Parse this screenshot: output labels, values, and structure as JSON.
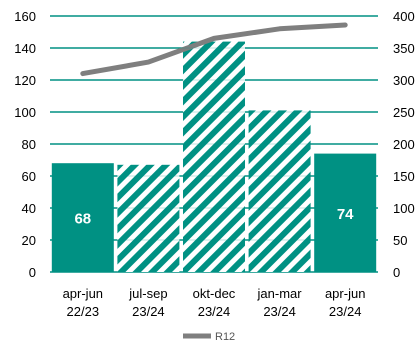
{
  "chart_data": {
    "type": "bar",
    "categories": [
      [
        "apr-jun",
        "22/23"
      ],
      [
        "jul-sep",
        "23/24"
      ],
      [
        "okt-dec",
        "23/24"
      ],
      [
        "jan-mar",
        "23/24"
      ],
      [
        "apr-jun",
        "23/24"
      ]
    ],
    "series": [
      {
        "kind": "bar",
        "axis": "left",
        "values": [
          68,
          67,
          144,
          101,
          74
        ],
        "patterns": [
          "solid",
          "hatched",
          "hatched",
          "hatched",
          "solid"
        ],
        "data_labels": [
          "68",
          null,
          null,
          null,
          "74"
        ]
      },
      {
        "name": "R12",
        "kind": "line",
        "axis": "right",
        "values": [
          310,
          328,
          365,
          380,
          386
        ]
      }
    ],
    "left_axis": {
      "min": 0,
      "max": 160,
      "ticks": [
        0,
        20,
        40,
        60,
        80,
        100,
        120,
        140,
        160
      ]
    },
    "right_axis": {
      "min": 0,
      "max": 400,
      "ticks": [
        0,
        50,
        100,
        150,
        200,
        250,
        300,
        350,
        400
      ]
    },
    "grid": true,
    "legend": {
      "position": "bottom",
      "entries": [
        "R12"
      ]
    },
    "colors": {
      "bar": "#009183",
      "line": "#7f7f7f",
      "grid": "#009183",
      "axis_text": "#000000"
    }
  }
}
